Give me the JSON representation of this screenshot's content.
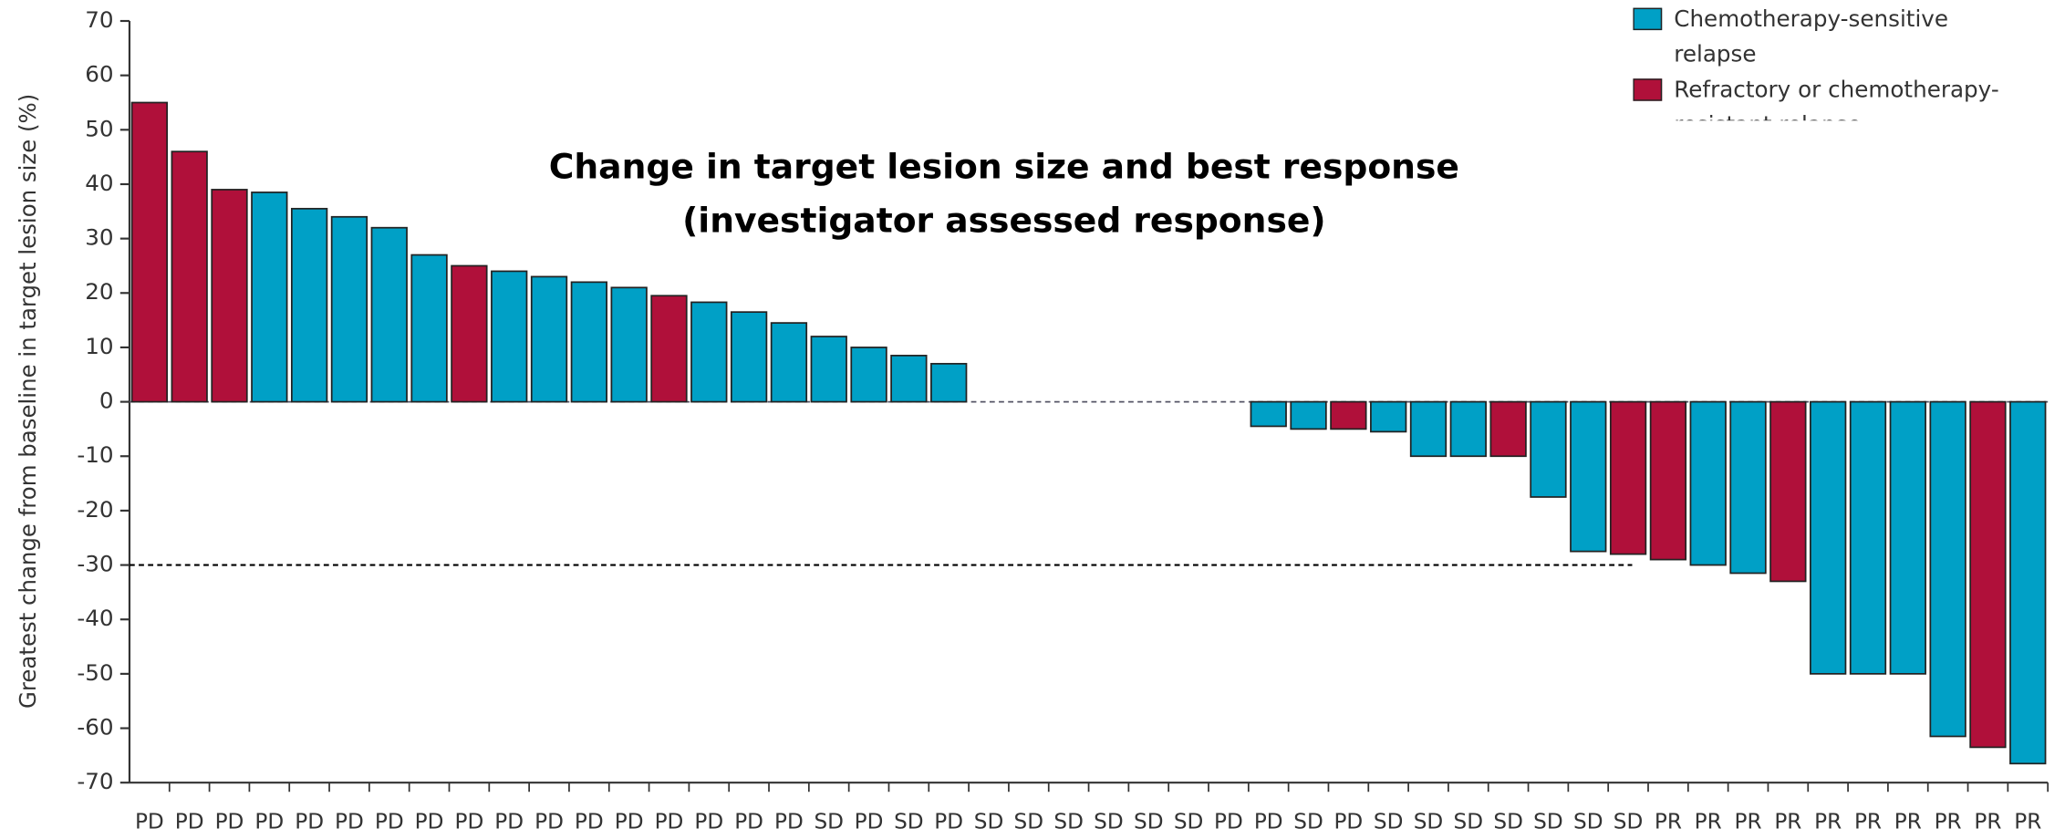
{
  "chart_data": {
    "type": "bar",
    "title": [
      "Change in target lesion size and best response",
      "(investigator assessed response)"
    ],
    "y_label": "Greatest change from baseline in target lesion size (%)",
    "categories": [
      "PD",
      "PD",
      "PD",
      "PD",
      "PD",
      "PD",
      "PD",
      "PD",
      "PD",
      "PD",
      "PD",
      "PD",
      "PD",
      "PD",
      "PD",
      "PD",
      "PD",
      "SD",
      "PD",
      "SD",
      "PD",
      "SD",
      "SD",
      "SD",
      "SD",
      "SD",
      "SD",
      "PD",
      "PD",
      "SD",
      "PD",
      "SD",
      "SD",
      "SD",
      "SD",
      "SD",
      "SD",
      "SD",
      "PR",
      "PR",
      "PR",
      "PR",
      "PR",
      "PR",
      "PR",
      "PR",
      "PR",
      "PR"
    ],
    "series": [
      {
        "name": "Chemotherapy-sensitive relapse",
        "color": "#00a0c6",
        "values": [
          null,
          null,
          null,
          38.5,
          35.5,
          34,
          32,
          27,
          null,
          24,
          23,
          22,
          21,
          null,
          18.3,
          16.5,
          14.5,
          12,
          10,
          8.5,
          7,
          null,
          null,
          null,
          null,
          null,
          null,
          null,
          -4.5,
          -5,
          null,
          -5.5,
          -10,
          -10,
          null,
          -17.5,
          -27.5,
          null,
          null,
          -30,
          -31.5,
          null,
          -50,
          -50,
          -50,
          -61.5,
          null,
          -66.5
        ]
      },
      {
        "name": "Refractory or chemotherapy-resistant relapse",
        "color": "#b0103a",
        "values": [
          55,
          46,
          39,
          null,
          null,
          null,
          null,
          null,
          25,
          null,
          null,
          null,
          null,
          19.5,
          null,
          null,
          null,
          null,
          null,
          null,
          null,
          null,
          null,
          null,
          null,
          null,
          null,
          null,
          null,
          null,
          -5,
          null,
          null,
          null,
          -10,
          null,
          null,
          -28,
          -29,
          null,
          null,
          -33,
          null,
          null,
          null,
          null,
          -63.5,
          null
        ]
      }
    ],
    "reference_lines": [
      -30
    ],
    "zero_line": 0,
    "ylim": [
      -70,
      70
    ],
    "yticks": [
      -70,
      -60,
      -50,
      -40,
      -30,
      -20,
      -10,
      0,
      10,
      20,
      30,
      40,
      50,
      60,
      70
    ]
  }
}
